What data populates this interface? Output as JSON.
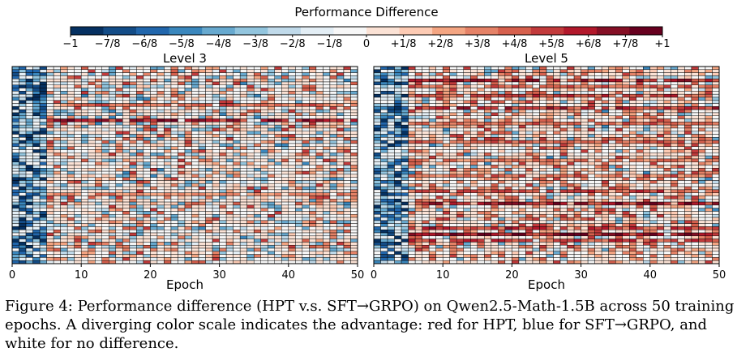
{
  "chart_data": {
    "type": "heatmap",
    "colorbar": {
      "title": "Performance Difference",
      "tick_labels": [
        "−1",
        "−7/8",
        "−6/8",
        "−5/8",
        "−4/8",
        "−3/8",
        "−2/8",
        "−1/8",
        "0",
        "+1/8",
        "+2/8",
        "+3/8",
        "+4/8",
        "+5/8",
        "+6/8",
        "+7/8",
        "+1"
      ],
      "range": [
        -1,
        1
      ],
      "colors": [
        "#053061",
        "#134c87",
        "#2166ac",
        "#3a87bd",
        "#67a9cf",
        "#92c5de",
        "#c0daea",
        "#e3eef5",
        "#f7f7f7",
        "#fbe2d5",
        "#fdcbb4",
        "#f4a582",
        "#e58267",
        "#d6604d",
        "#c23a3b",
        "#b2182b",
        "#850f25",
        "#67001f"
      ]
    },
    "panels": [
      {
        "title": "Level 3",
        "xlabel": "Epoch",
        "x_ticks": [
          0,
          10,
          20,
          30,
          40,
          50
        ],
        "x_range": [
          0,
          50
        ],
        "rows": 64,
        "seed": 11,
        "red_rows": [
          12,
          17,
          41
        ],
        "red_strength": [
          0.55,
          0.9,
          0.45
        ],
        "red_weight": 0.08
      },
      {
        "title": "Level 5",
        "xlabel": "Epoch",
        "x_ticks": [
          0,
          10,
          20,
          30,
          40,
          50
        ],
        "x_range": [
          0,
          50
        ],
        "rows": 64,
        "seed": 29,
        "red_rows": [
          4,
          6,
          9,
          13,
          18,
          24,
          30,
          35,
          40,
          44,
          52,
          54,
          56
        ],
        "red_strength": [
          0.85,
          0.6,
          0.7,
          0.8,
          0.55,
          0.6,
          0.5,
          0.55,
          0.65,
          0.9,
          0.75,
          0.95,
          0.7
        ],
        "red_weight": 0.2
      }
    ]
  },
  "caption": {
    "text": "Figure 4: Performance difference (HPT v.s. SFT→GRPO) on Qwen2.5-Math-1.5B across 50 training epochs. A diverging color scale indicates the advantage: red for HPT, blue for SFT→GRPO, and white for no difference."
  }
}
